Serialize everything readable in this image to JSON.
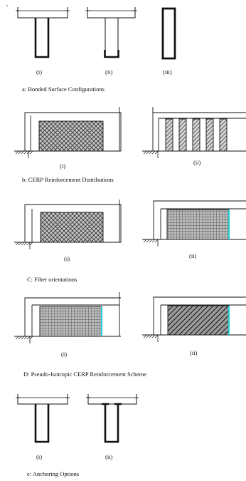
{
  "panel_a": {
    "caption": "a:  Bonded Surface Configurations",
    "labels": [
      "(i)",
      "(ii)",
      "(iii)"
    ]
  },
  "panel_b": {
    "caption": "b:  CERP Reinforcement Distributions",
    "labels": [
      "(i)",
      "(ii)"
    ]
  },
  "panel_c": {
    "caption": "C:    Fiber orientations",
    "labels": [
      "(i)",
      "(ii)"
    ]
  },
  "panel_d": {
    "caption": "D:    Pseudo-Isotropic CERP Reinforcement Scheme",
    "labels": [
      "(i)",
      "(ii)"
    ]
  },
  "panel_e": {
    "caption": "e:   Anchoring Options",
    "labels": [
      "(i)",
      "(ii)"
    ]
  },
  "colors": {
    "line": "#111111",
    "hatch": "#444444",
    "cyan_edge": "#1ccfd8",
    "fill_bg": "#bdbdbd"
  }
}
